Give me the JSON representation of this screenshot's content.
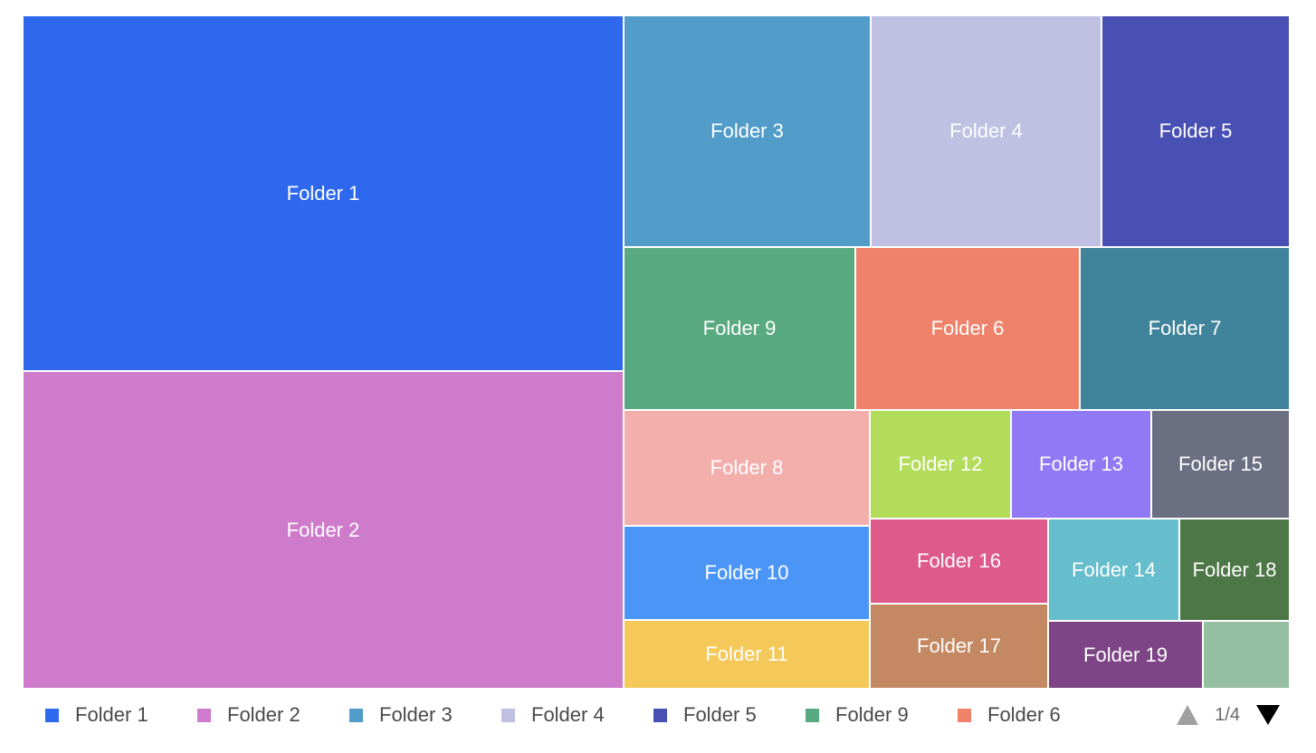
{
  "chart_data": {
    "type": "treemap",
    "items": [
      {
        "name": "Folder 1",
        "label": "Folder 1",
        "color": "#2d68ed"
      },
      {
        "name": "Folder 2",
        "label": "Folder 2",
        "color": "#cf7bcb"
      },
      {
        "name": "Folder 3",
        "label": "Folder 3",
        "color": "#529cca"
      },
      {
        "name": "Folder 4",
        "label": "Folder 4",
        "color": "#bfc0e2"
      },
      {
        "name": "Folder 5",
        "label": "Folder 5",
        "color": "#4850b3"
      },
      {
        "name": "Folder 9",
        "label": "Folder 9",
        "color": "#5aaa81"
      },
      {
        "name": "Folder 6",
        "label": "Folder 6",
        "color": "#ef826a"
      },
      {
        "name": "Folder 7",
        "label": "Folder 7",
        "color": "#3f849a"
      },
      {
        "name": "Folder 8",
        "label": "Folder 8",
        "color": "#f2afac"
      },
      {
        "name": "Folder 12",
        "label": "Folder 12",
        "color": "#b2dc5a"
      },
      {
        "name": "Folder 13",
        "label": "Folder 13",
        "color": "#9178f4"
      },
      {
        "name": "Folder 15",
        "label": "Folder 15",
        "color": "#6c6e82"
      },
      {
        "name": "Folder 10",
        "label": "Folder 10",
        "color": "#4b95f7"
      },
      {
        "name": "Folder 16",
        "label": "Folder 16",
        "color": "#dd5a8a"
      },
      {
        "name": "Folder 14",
        "label": "Folder 14",
        "color": "#66bdcc"
      },
      {
        "name": "Folder 18",
        "label": "Folder 18",
        "color": "#4d7747"
      },
      {
        "name": "Folder 11",
        "label": "Folder 11",
        "color": "#f5c85a"
      },
      {
        "name": "Folder 17",
        "label": "Folder 17",
        "color": "#c48962"
      },
      {
        "name": "Folder 19",
        "label": "Folder 19",
        "color": "#7d4486"
      },
      {
        "name": "",
        "label": "",
        "color": "#96bea2"
      }
    ],
    "legend": {
      "position": "bottom",
      "items": [
        {
          "label": "Folder 1",
          "color": "#2d68ed"
        },
        {
          "label": "Folder 2",
          "color": "#cf7bcb"
        },
        {
          "label": "Folder 3",
          "color": "#529cca"
        },
        {
          "label": "Folder 4",
          "color": "#bfc0e2"
        },
        {
          "label": "Folder 5",
          "color": "#4850b3"
        },
        {
          "label": "Folder 9",
          "color": "#5aaa81"
        },
        {
          "label": "Folder 6",
          "color": "#ef826a"
        }
      ]
    },
    "pager": {
      "text": "1/4"
    }
  }
}
